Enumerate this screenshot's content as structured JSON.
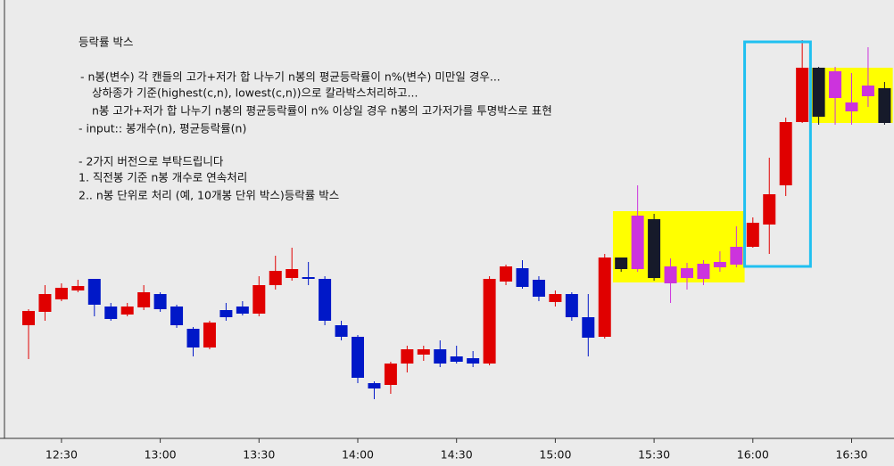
{
  "chart_data": {
    "type": "candlestick",
    "annotations": [
      "등락률 박스",
      "- n봉(변수) 각 캔들의 고가+저가 합 나누기 n봉의 평균등락률이 n%(변수) 미만일 경우...",
      "상하종가 기준(highest(c,n), lowest(c,n))으로 칼라박스처리하고...",
      "n봉 고가+저가 합 나누기 n봉의 평균등락률이  n% 이상일 경우 n봉의 고가저가를 투명박스로 표현",
      "- input:: 봉개수(n), 평균등락률(n)",
      "- 2가지 버전으로 부탁드립니다",
      "1. 직전봉 기준 n봉 개수로 연속처리",
      "2.. n봉 단위로 처리 (예, 10개봉 단위 박스)등락률 박스"
    ],
    "categories": [
      null,
      null,
      "12:30",
      null,
      null,
      null,
      null,
      null,
      "13:00",
      null,
      null,
      null,
      null,
      null,
      "13:30",
      null,
      null,
      null,
      null,
      null,
      "14:00",
      null,
      null,
      null,
      null,
      null,
      "14:30",
      null,
      null,
      null,
      null,
      null,
      "15:00",
      null,
      null,
      null,
      null,
      null,
      "15:30",
      null,
      null,
      null,
      null,
      null,
      "16:00",
      null,
      null,
      null,
      null,
      null,
      "16:30",
      null,
      null
    ],
    "open": [
      135,
      150,
      164,
      174,
      187,
      156,
      147,
      155,
      170,
      156,
      131,
      110,
      152,
      156,
      148,
      180,
      188,
      189,
      187,
      135,
      122,
      70,
      68,
      92,
      102,
      108,
      100,
      98,
      92,
      184,
      199,
      186,
      161,
      170,
      144,
      122,
      211,
      198,
      254,
      182,
      188,
      187,
      200,
      203,
      223,
      248,
      292,
      363,
      424,
      390,
      375,
      392,
      401
    ],
    "high": [
      153,
      180,
      182,
      186,
      187,
      160,
      160,
      180,
      172,
      158,
      133,
      140,
      160,
      162,
      190,
      213,
      222,
      206,
      190,
      140,
      124,
      72,
      94,
      112,
      112,
      118,
      112,
      106,
      190,
      203,
      208,
      190,
      174,
      172,
      170,
      215,
      211,
      292,
      260,
      210,
      205,
      208,
      218,
      246,
      256,
      323,
      368,
      455,
      425,
      425,
      418,
      447,
      408
    ],
    "low": [
      97,
      140,
      162,
      172,
      145,
      140,
      145,
      152,
      150,
      132,
      100,
      108,
      140,
      146,
      145,
      175,
      185,
      180,
      135,
      118,
      70,
      52,
      58,
      82,
      95,
      88,
      92,
      88,
      90,
      180,
      176,
      162,
      156,
      140,
      100,
      120,
      195,
      195,
      185,
      160,
      175,
      180,
      195,
      200,
      222,
      215,
      280,
      362,
      360,
      360,
      360,
      380,
      360
    ],
    "close": [
      151,
      170,
      177,
      179,
      158,
      142,
      156,
      172,
      153,
      135,
      110,
      138,
      144,
      148,
      180,
      196,
      198,
      187,
      140,
      122,
      76,
      64,
      92,
      108,
      108,
      92,
      94,
      92,
      187,
      201,
      178,
      167,
      170,
      144,
      121,
      211,
      198,
      258,
      188,
      201,
      199,
      204,
      206,
      223,
      250,
      282,
      363,
      424,
      369,
      420,
      385,
      404,
      362
    ],
    "up_color": "#e00000",
    "down_color": "#0018c8",
    "boxes": [
      {
        "start": 36,
        "end": 43,
        "top": 263,
        "bottom": 183,
        "fill": "#ffff00",
        "up_color": "#cc33dd",
        "down_color": "#161a2a"
      },
      {
        "start": 48,
        "end": 52,
        "top": 424,
        "bottom": 362,
        "fill": "#ffff00",
        "up_color": "#cc33dd",
        "down_color": "#161a2a"
      },
      {
        "start": 44,
        "end": 47,
        "top": 453,
        "bottom": 201,
        "stroke": "#20c0f0"
      }
    ],
    "ylim": [
      10,
      500
    ]
  }
}
